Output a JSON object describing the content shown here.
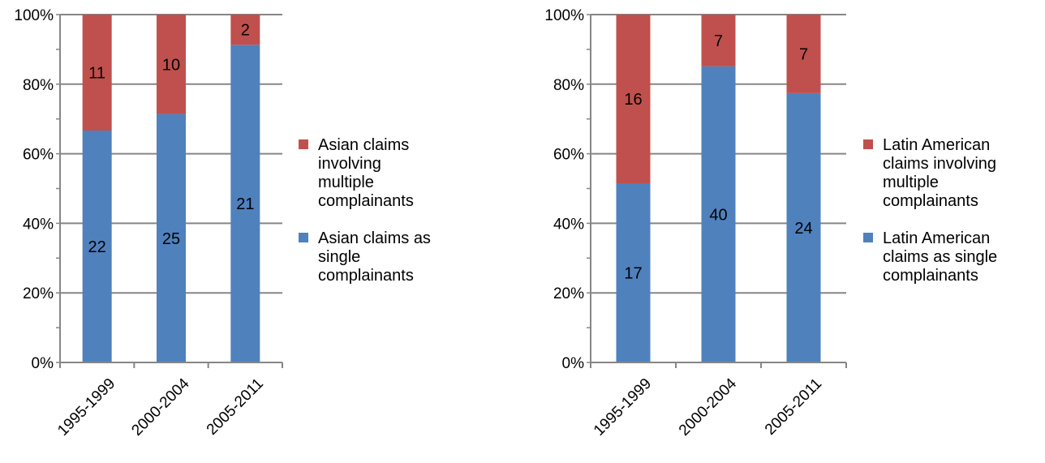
{
  "chart_data": [
    {
      "type": "bar",
      "stacked": true,
      "percent_stacked": true,
      "categories": [
        "1995-1999",
        "2000-2004",
        "2005-2011"
      ],
      "y_ticks": [
        "0%",
        "20%",
        "40%",
        "60%",
        "80%",
        "100%"
      ],
      "ylim": [
        0,
        100
      ],
      "grid": true,
      "legend_position": "right",
      "series": [
        {
          "name": "Asian claims as single complainants",
          "values": [
            22,
            25,
            21
          ],
          "color": "#4F81BD"
        },
        {
          "name": "Asian claims involving multiple complainants",
          "values": [
            11,
            10,
            2
          ],
          "color": "#C0504D"
        }
      ]
    },
    {
      "type": "bar",
      "stacked": true,
      "percent_stacked": true,
      "categories": [
        "1995-1999",
        "2000-2004",
        "2005-2011"
      ],
      "y_ticks": [
        "0%",
        "20%",
        "40%",
        "60%",
        "80%",
        "100%"
      ],
      "ylim": [
        0,
        100
      ],
      "grid": true,
      "legend_position": "right",
      "series": [
        {
          "name": "Latin American claims as single complainants",
          "values": [
            17,
            40,
            24
          ],
          "color": "#4F81BD"
        },
        {
          "name": "Latin American claims involving multiple complainants",
          "values": [
            16,
            7,
            7
          ],
          "color": "#C0504D"
        }
      ]
    }
  ]
}
